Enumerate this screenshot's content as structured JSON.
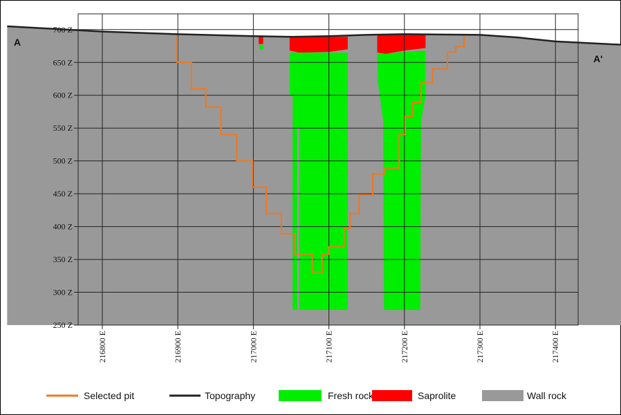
{
  "chart_data": {
    "type": "section",
    "annotations": [
      "A",
      "A'"
    ],
    "xlim": [
      216768,
      217430
    ],
    "ylim": [
      250,
      724
    ],
    "xticks": [
      {
        "value": 216800,
        "label": "216800 E"
      },
      {
        "value": 216900,
        "label": "216900 E"
      },
      {
        "value": 217000,
        "label": "217000 E"
      },
      {
        "value": 217100,
        "label": "217100 E"
      },
      {
        "value": 217200,
        "label": "217200 E"
      },
      {
        "value": 217300,
        "label": "217300 E"
      },
      {
        "value": 217400,
        "label": "217400 E"
      }
    ],
    "yticks": [
      {
        "value": 250,
        "label": "250 Z"
      },
      {
        "value": 300,
        "label": "300 Z"
      },
      {
        "value": 350,
        "label": "350 Z"
      },
      {
        "value": 400,
        "label": "400 Z"
      },
      {
        "value": 450,
        "label": "450 Z"
      },
      {
        "value": 500,
        "label": "500 Z"
      },
      {
        "value": 550,
        "label": "550 Z"
      },
      {
        "value": 600,
        "label": "600 Z"
      },
      {
        "value": 650,
        "label": "650 Z"
      },
      {
        "value": 700,
        "label": "700 Z"
      }
    ],
    "grid": true,
    "layers": [
      {
        "name": "Selected pit",
        "color": "#f07820",
        "kind": "line",
        "x": [
          216899,
          216899,
          216918,
          216918,
          216937,
          216937,
          216957,
          216957,
          216978,
          216978,
          216999,
          216999,
          217017,
          217017,
          217037,
          217037,
          217055,
          217055,
          217078,
          217078,
          217091,
          217091,
          217100,
          217100,
          217120,
          217120,
          217128,
          217128,
          217140,
          217140,
          217158,
          217158,
          217174,
          217174,
          217193,
          217193,
          217201,
          217201,
          217211,
          217211,
          217222,
          217222,
          217237,
          217237,
          217257,
          217257,
          217268,
          217268,
          217279,
          217279
        ],
        "y": [
          690,
          650,
          650,
          610,
          610,
          582,
          582,
          540,
          540,
          500,
          500,
          460,
          460,
          420,
          420,
          389,
          389,
          358,
          358,
          329,
          329,
          358,
          358,
          369,
          369,
          397,
          397,
          420,
          420,
          448,
          448,
          480,
          480,
          489,
          489,
          540,
          540,
          568,
          568,
          589,
          589,
          619,
          619,
          640,
          640,
          666,
          666,
          674,
          674,
          693
        ]
      },
      {
        "name": "Topography",
        "color": "#222222",
        "kind": "surface",
        "x": [
          216674,
          216800,
          216900,
          217000,
          217050,
          217100,
          217150,
          217200,
          217300,
          217350,
          217400,
          217487
        ],
        "y": [
          705,
          697,
          693,
          690,
          689,
          690,
          692,
          693,
          692,
          688,
          682,
          677
        ]
      },
      {
        "name": "Fresh rock",
        "color": "#00ee00",
        "kind": "polygons",
        "polygons": [
          {
            "x": [
              217048,
              217125,
              217125,
              217061,
              217061,
              217058,
              217058,
              217052,
              217052,
              217048
            ],
            "y": [
              665,
              665,
              273,
              273,
              550,
              550,
              273,
              273,
              600,
              600
            ]
          },
          {
            "x": [
              217164,
              217228,
              217228,
              217222,
              217221,
              217173,
              217172,
              217165
            ],
            "y": [
              663,
              668,
              600,
              560,
              273,
              273,
              560,
              620
            ]
          },
          {
            "x": [
              217008,
              217013,
              217013,
              217008
            ],
            "y": [
              677,
              677,
              670,
              670
            ]
          }
        ]
      },
      {
        "name": "Saprolite",
        "color": "#ff0000",
        "kind": "polygons",
        "polygons": [
          {
            "x": [
              217048,
              217125,
              217125,
              217100,
              217060,
              217048
            ],
            "y": [
              689,
              689,
              670,
              666,
              665,
              668
            ]
          },
          {
            "x": [
              217164,
              217228,
              217228,
              217200,
              217175,
              217164
            ],
            "y": [
              693,
              693,
              672,
              668,
              663,
              665
            ]
          },
          {
            "x": [
              217007,
              217013,
              217013,
              217007
            ],
            "y": [
              689,
              689,
              678,
              678
            ]
          }
        ]
      },
      {
        "name": "Wall rock",
        "color": "#999999",
        "kind": "base"
      }
    ]
  }
}
